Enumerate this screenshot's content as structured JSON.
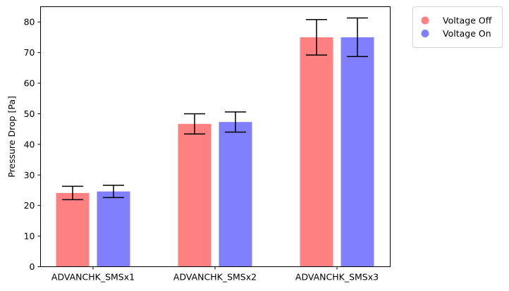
{
  "chart_data": {
    "type": "bar",
    "title": "",
    "xlabel": "",
    "ylabel": "Pressure Drop [Pa]",
    "categories": [
      "ADVANCHK_SMSx1",
      "ADVANCHK_SMSx2",
      "ADVANCHK_SMSx3"
    ],
    "ylim": [
      0,
      85
    ],
    "yticks": [
      0,
      10,
      20,
      30,
      40,
      50,
      60,
      70,
      80
    ],
    "grid": false,
    "legend_position": "outside-top-right",
    "series": [
      {
        "name": "Voltage Off",
        "color": "#ff8080",
        "values": [
          24.1,
          46.7,
          75.0
        ],
        "errors": [
          2.2,
          3.3,
          5.8
        ]
      },
      {
        "name": "Voltage On",
        "color": "#8080ff",
        "values": [
          24.6,
          47.3,
          75.0
        ],
        "errors": [
          2.0,
          3.3,
          6.3
        ]
      }
    ]
  }
}
